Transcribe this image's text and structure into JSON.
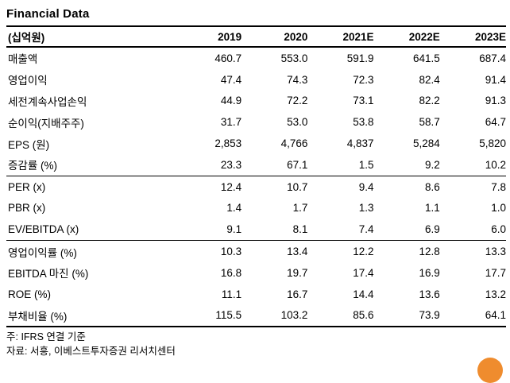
{
  "title": "Financial Data",
  "table": {
    "unit_label": "(십억원)",
    "columns": [
      "2019",
      "2020",
      "2021E",
      "2022E",
      "2023E"
    ],
    "groups": [
      {
        "rows": [
          {
            "label": "매출액",
            "values": [
              "460.7",
              "553.0",
              "591.9",
              "641.5",
              "687.4"
            ]
          },
          {
            "label": "영업이익",
            "values": [
              "47.4",
              "74.3",
              "72.3",
              "82.4",
              "91.4"
            ]
          },
          {
            "label": "세전계속사업손익",
            "values": [
              "44.9",
              "72.2",
              "73.1",
              "82.2",
              "91.3"
            ]
          },
          {
            "label": "순이익(지배주주)",
            "values": [
              "31.7",
              "53.0",
              "53.8",
              "58.7",
              "64.7"
            ]
          },
          {
            "label": "EPS (원)",
            "values": [
              "2,853",
              "4,766",
              "4,837",
              "5,284",
              "5,820"
            ]
          },
          {
            "label": "증감률 (%)",
            "values": [
              "23.3",
              "67.1",
              "1.5",
              "9.2",
              "10.2"
            ]
          }
        ]
      },
      {
        "rows": [
          {
            "label": "PER (x)",
            "values": [
              "12.4",
              "10.7",
              "9.4",
              "8.6",
              "7.8"
            ]
          },
          {
            "label": "PBR (x)",
            "values": [
              "1.4",
              "1.7",
              "1.3",
              "1.1",
              "1.0"
            ]
          },
          {
            "label": "EV/EBITDA (x)",
            "values": [
              "9.1",
              "8.1",
              "7.4",
              "6.9",
              "6.0"
            ]
          }
        ]
      },
      {
        "rows": [
          {
            "label": "영업이익률 (%)",
            "values": [
              "10.3",
              "13.4",
              "12.2",
              "12.8",
              "13.3"
            ]
          },
          {
            "label": "EBITDA 마진 (%)",
            "values": [
              "16.8",
              "19.7",
              "17.4",
              "16.9",
              "17.7"
            ]
          },
          {
            "label": "ROE (%)",
            "values": [
              "11.1",
              "16.7",
              "14.4",
              "13.6",
              "13.2"
            ]
          },
          {
            "label": "부채비율 (%)",
            "values": [
              "115.5",
              "103.2",
              "85.6",
              "73.9",
              "64.1"
            ]
          }
        ]
      }
    ]
  },
  "footnotes": [
    "주: IFRS 연결 기준",
    "자료: 서흥, 이베스트투자증권 리서치센터"
  ],
  "fab": {
    "color": "#EF8C2E"
  }
}
